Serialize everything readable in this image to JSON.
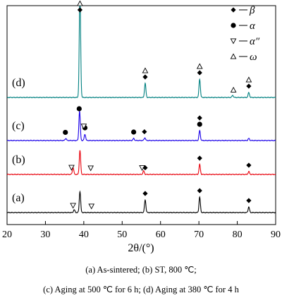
{
  "chart_data": {
    "type": "line",
    "xlabel": "2θ/(°)",
    "xlim": [
      20,
      90
    ],
    "xticks": [
      20,
      30,
      40,
      50,
      60,
      70,
      80,
      90
    ],
    "ylabel": "",
    "yticks": "none",
    "legend_position": "top-right",
    "legend": [
      {
        "symbol": "diamond-filled",
        "label": "β"
      },
      {
        "symbol": "circle-filled",
        "label": "α"
      },
      {
        "symbol": "triangle-down-open",
        "label": "α″"
      },
      {
        "symbol": "triangle-up-open",
        "label": "ω"
      }
    ],
    "series": [
      {
        "name": "(a)",
        "color": "#000000",
        "baseline": 0,
        "peaks": [
          {
            "x": 37.5,
            "height": 4
          },
          {
            "x": 39.0,
            "height": 30
          },
          {
            "x": 56.0,
            "height": 18
          },
          {
            "x": 70.2,
            "height": 22
          },
          {
            "x": 83.0,
            "height": 8
          }
        ],
        "markers": [
          {
            "x": 37.2,
            "symbol": "triangle-down-open"
          },
          {
            "x": 42.0,
            "symbol": "triangle-down-open"
          },
          {
            "x": 56.0,
            "symbol": "diamond-filled"
          },
          {
            "x": 70.2,
            "symbol": "diamond-filled"
          },
          {
            "x": 83.0,
            "symbol": "diamond-filled"
          }
        ]
      },
      {
        "name": "(b)",
        "color": "#e8000b",
        "baseline": 1,
        "peaks": [
          {
            "x": 37.2,
            "height": 10
          },
          {
            "x": 39.0,
            "height": 34
          },
          {
            "x": 55.6,
            "height": 5
          },
          {
            "x": 70.2,
            "height": 14
          },
          {
            "x": 83.0,
            "height": 4
          }
        ],
        "markers": [
          {
            "x": 36.8,
            "symbol": "triangle-down-open"
          },
          {
            "x": 41.8,
            "symbol": "triangle-down-open"
          },
          {
            "x": 55.2,
            "symbol": "triangle-down-open"
          },
          {
            "x": 56.0,
            "symbol": "diamond-filled"
          },
          {
            "x": 70.2,
            "symbol": "diamond-filled"
          },
          {
            "x": 83.0,
            "symbol": "diamond-filled"
          }
        ]
      },
      {
        "name": "(c)",
        "color": "#1a00e8",
        "baseline": 2,
        "peaks": [
          {
            "x": 35.3,
            "height": 3
          },
          {
            "x": 38.9,
            "height": 42
          },
          {
            "x": 40.3,
            "height": 9
          },
          {
            "x": 53.0,
            "height": 3
          },
          {
            "x": 55.9,
            "height": 4
          },
          {
            "x": 70.2,
            "height": 14
          },
          {
            "x": 83.0,
            "height": 3
          }
        ],
        "markers": [
          {
            "x": 35.2,
            "symbol": "circle-filled"
          },
          {
            "x": 38.8,
            "symbol": "circle-filled"
          },
          {
            "x": 40.3,
            "symbol": "circle-filled"
          },
          {
            "x": 40.0,
            "symbol": "triangle-down-open"
          },
          {
            "x": 53.0,
            "symbol": "circle-filled"
          },
          {
            "x": 55.8,
            "symbol": "diamond-filled"
          },
          {
            "x": 70.2,
            "symbol": "circle-filled"
          },
          {
            "x": 70.2,
            "symbol": "diamond-filled"
          }
        ]
      },
      {
        "name": "(d)",
        "color": "#008080",
        "baseline": 3,
        "peaks": [
          {
            "x": 39.0,
            "height": 150
          },
          {
            "x": 56.0,
            "height": 20
          },
          {
            "x": 70.2,
            "height": 26
          },
          {
            "x": 78.8,
            "height": 3
          },
          {
            "x": 83.0,
            "height": 7
          }
        ],
        "markers": [
          {
            "x": 39.0,
            "symbol": "diamond-filled"
          },
          {
            "x": 39.0,
            "symbol": "triangle-up-open"
          },
          {
            "x": 56.0,
            "symbol": "diamond-filled"
          },
          {
            "x": 56.0,
            "symbol": "triangle-up-open"
          },
          {
            "x": 70.2,
            "symbol": "diamond-filled"
          },
          {
            "x": 70.2,
            "symbol": "triangle-up-open"
          },
          {
            "x": 79.0,
            "symbol": "triangle-up-open"
          },
          {
            "x": 83.0,
            "symbol": "diamond-filled"
          },
          {
            "x": 83.0,
            "symbol": "triangle-up-open"
          }
        ]
      }
    ]
  },
  "caption": {
    "line1": "(a) As-sintered; (b) ST, 800 ℃;",
    "line2": "(c) Aging at 500 ℃ for 6 h; (d) Aging at 380 ℃ for 4 h"
  }
}
